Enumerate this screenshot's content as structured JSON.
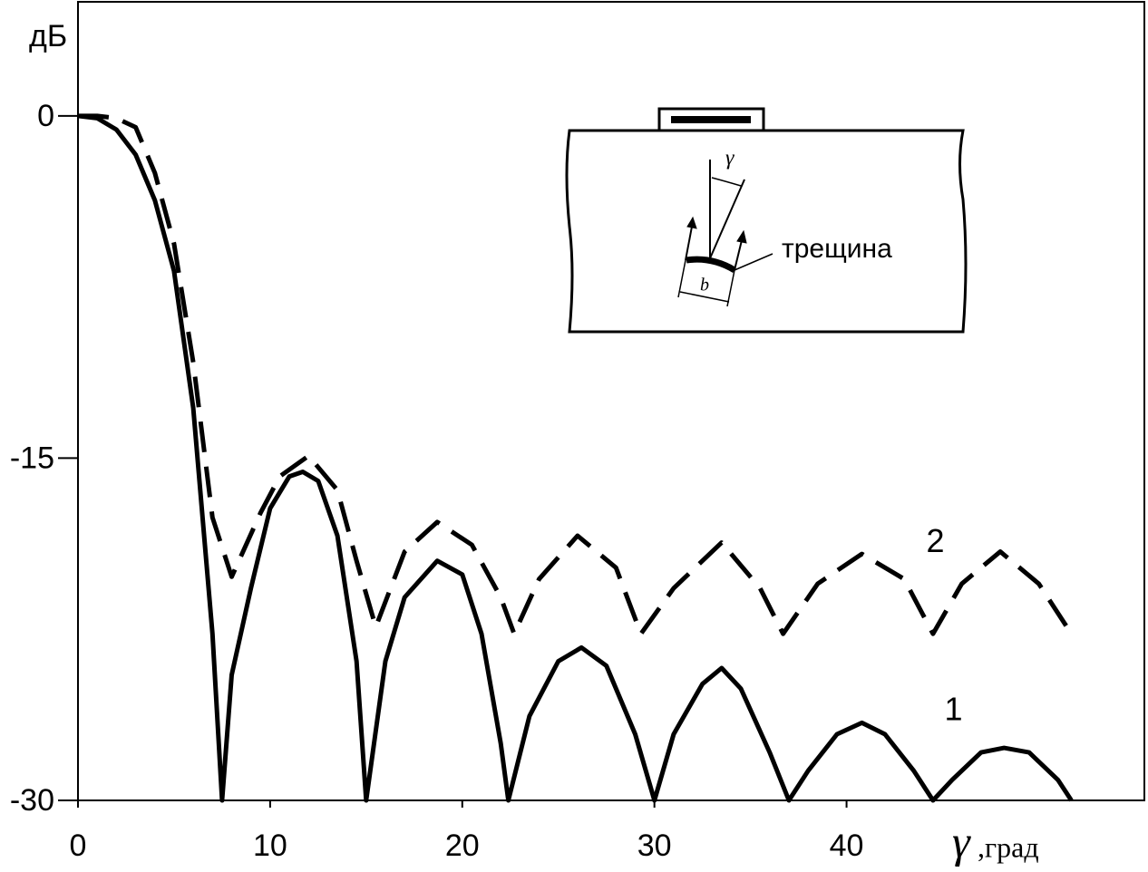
{
  "chart_data": {
    "type": "line",
    "y_label": "дБ",
    "x_label_symbol": "γ",
    "x_label": ",град",
    "xlim": [
      0,
      55.5
    ],
    "ylim": [
      -30,
      5
    ],
    "xticks": [
      0,
      10,
      20,
      30,
      40
    ],
    "yticks": [
      0,
      -15,
      -30
    ],
    "series": [
      {
        "name": "1",
        "color": "#000000",
        "dashed": false,
        "x": [
          0,
          1,
          2,
          3,
          4,
          5,
          6,
          7,
          7.5,
          8,
          9,
          10,
          11,
          11.7,
          12.5,
          13.5,
          14.5,
          15,
          16,
          17,
          18.7,
          20,
          21,
          22,
          22.4,
          23.5,
          25,
          26.2,
          27.5,
          29,
          30,
          31,
          32.5,
          33.5,
          34.5,
          36,
          37,
          38,
          39.5,
          40.8,
          42,
          43.5,
          44.5,
          45.5,
          47,
          48.2,
          49.5,
          51,
          51.7
        ],
        "values": [
          0,
          -0.1,
          -0.6,
          -1.7,
          -3.7,
          -6.8,
          -12.8,
          -22.7,
          -30,
          -24.5,
          -20.7,
          -17.2,
          -15.8,
          -15.6,
          -16,
          -18.4,
          -23.9,
          -30,
          -23.9,
          -21.1,
          -19.5,
          -20.1,
          -22.7,
          -27.5,
          -30,
          -26.3,
          -23.9,
          -23.3,
          -24.1,
          -27.1,
          -30,
          -27.1,
          -24.9,
          -24.2,
          -25.1,
          -27.9,
          -30,
          -28.7,
          -27.1,
          -26.6,
          -27.1,
          -28.7,
          -30,
          -29.1,
          -27.9,
          -27.7,
          -27.9,
          -29.1,
          -30
        ]
      },
      {
        "name": "2",
        "color": "#000000",
        "dashed": true,
        "x": [
          0,
          1,
          2,
          3,
          4,
          5,
          6,
          7,
          8,
          9.5,
          10.5,
          12,
          13.5,
          14.5,
          15.5,
          17,
          18.7,
          20.5,
          22,
          22.7,
          24,
          26,
          28,
          29.3,
          31,
          33.5,
          35.5,
          36.7,
          38.5,
          40.8,
          43,
          44.5,
          46,
          48,
          50,
          51.7
        ],
        "values": [
          0,
          0,
          -0.1,
          -0.5,
          -2.5,
          -5.6,
          -10.8,
          -17.6,
          -20.2,
          -17.4,
          -15.8,
          -14.9,
          -16.4,
          -19.5,
          -22.4,
          -19.1,
          -17.8,
          -18.8,
          -21.1,
          -22.7,
          -20.3,
          -18.4,
          -19.8,
          -22.7,
          -20.7,
          -18.7,
          -20.7,
          -22.7,
          -20.5,
          -19.2,
          -20.3,
          -22.7,
          -20.5,
          -19.1,
          -20.5,
          -22.7
        ]
      }
    ],
    "inset": {
      "angle_label": "γ",
      "crack_label": "трещина",
      "width_label": "b"
    }
  }
}
